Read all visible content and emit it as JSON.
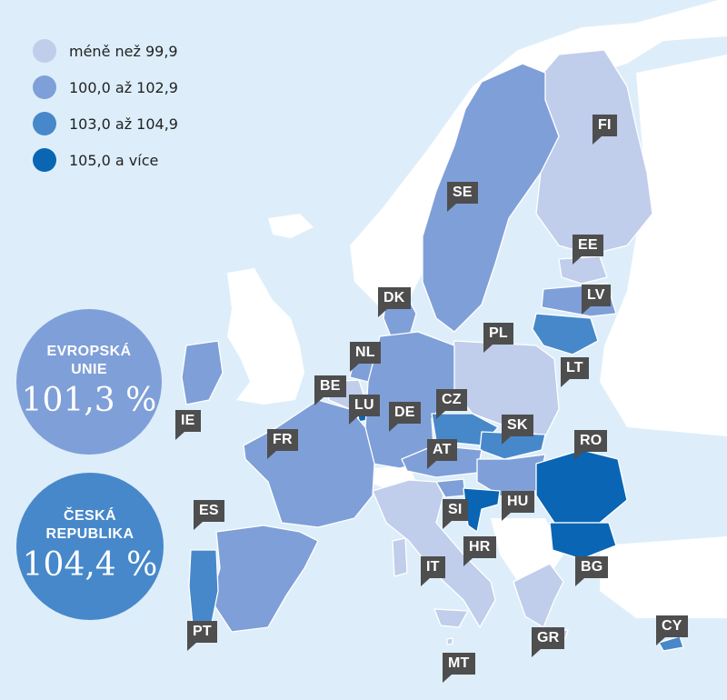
{
  "legend": {
    "items": [
      {
        "label": "méně než 99,9",
        "color": "#c0cdeb"
      },
      {
        "label": "100,0 až 102,9",
        "color": "#7f9fd8"
      },
      {
        "label": "103,0 až 104,9",
        "color": "#4788ca"
      },
      {
        "label": "105,0 a více",
        "color": "#0a65b4"
      }
    ]
  },
  "countries": {
    "FI": "FI",
    "SE": "SE",
    "EE": "EE",
    "LV": "LV",
    "DK": "DK",
    "LT": "LT",
    "NL": "NL",
    "PL": "PL",
    "BE": "BE",
    "LU": "LU",
    "DE": "DE",
    "CZ": "CZ",
    "IE": "IE",
    "SK": "SK",
    "FR": "FR",
    "AT": "AT",
    "RO": "RO",
    "HU": "HU",
    "SI": "SI",
    "ES": "ES",
    "HR": "HR",
    "IT": "IT",
    "BG": "BG",
    "PT": "PT",
    "GR": "GR",
    "CY": "CY",
    "MT": "MT"
  },
  "eu": {
    "line1": "EVROPSKÁ",
    "line2": "UNIE",
    "value": "101,3 %",
    "color": "#7f9fd8"
  },
  "cz": {
    "line1": "ČESKÁ",
    "line2": "REPUBLIKA",
    "value": "104,4 %",
    "color": "#4788ca"
  }
}
